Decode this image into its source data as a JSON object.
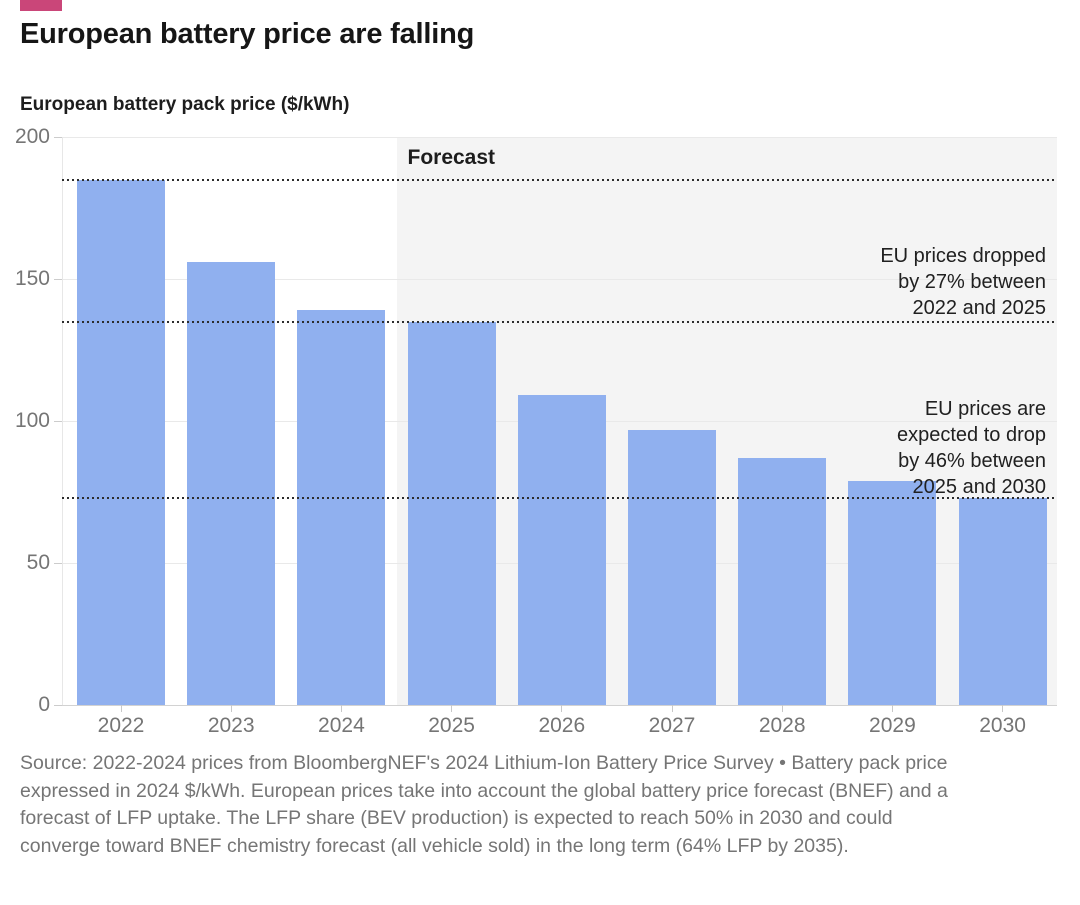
{
  "header": {
    "accent_color": "#ca4679",
    "title": "European battery price are falling"
  },
  "chart_data": {
    "type": "bar",
    "title": "European battery pack price ($/kWh)",
    "unit": "$/kWh",
    "categories": [
      "2022",
      "2023",
      "2024",
      "2025",
      "2026",
      "2027",
      "2028",
      "2029",
      "2030"
    ],
    "values": [
      185,
      156,
      139,
      135,
      109,
      97,
      87,
      79,
      73
    ],
    "ylim": [
      0,
      200
    ],
    "yticks": [
      0,
      50,
      100,
      150,
      200
    ],
    "grid": true,
    "bar_color": "#90b0ef",
    "forecast": {
      "label": "Forecast",
      "starts_at": "2025",
      "background": "#f4f4f4"
    },
    "reference_lines": [
      185,
      135,
      73
    ],
    "annotations": [
      {
        "lines": [
          "EU prices dropped",
          "by 27% between",
          "2022 and 2025"
        ]
      },
      {
        "lines": [
          "EU prices are",
          "expected to drop",
          "by 46% between",
          "2025 and 2030"
        ]
      }
    ]
  },
  "source_note": "Source: 2022-2024 prices from BloombergNEF's 2024 Lithium-Ion Battery Price Survey • Battery pack price expressed in 2024 $/kWh. European prices take into account the global battery price forecast (BNEF) and a forecast of LFP uptake. The LFP share (BEV production) is expected to reach 50% in 2030 and could converge toward BNEF chemistry forecast (all vehicle sold) in the long term (64% LFP by 2035)."
}
